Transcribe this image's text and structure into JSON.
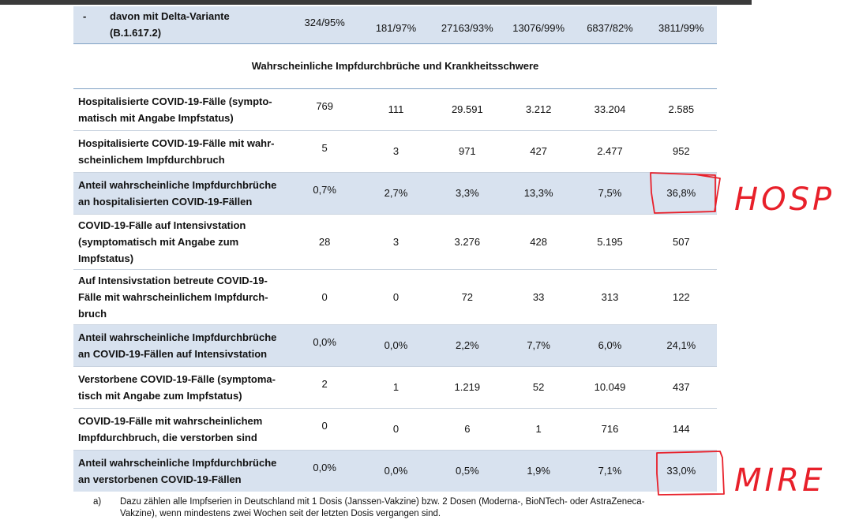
{
  "delta_row": {
    "dash": "-",
    "label_line1": "davon mit Delta-Variante",
    "label_line2": "(B.1.617.2)",
    "values": [
      "324/95%",
      "181/97%",
      "27163/93%",
      "13076/99%",
      "6837/82%",
      "3811/99%"
    ]
  },
  "section_title": "Wahrscheinliche Impfdurchbrüche und Krankheitsschwere",
  "rows": [
    {
      "lines": [
        "Hospitalisierte COVID-19-Fälle (sympto-",
        "matisch mit Angabe Impfstatus)"
      ],
      "values": [
        "769",
        "111",
        "29.591",
        "3.212",
        "33.204",
        "2.585"
      ],
      "shaded": false
    },
    {
      "lines": [
        "Hospitalisierte COVID-19-Fälle mit wahr-",
        "scheinlichem Impfdurchbruch"
      ],
      "values": [
        "5",
        "3",
        "971",
        "427",
        "2.477",
        "952"
      ],
      "shaded": false
    },
    {
      "lines": [
        "Anteil wahrscheinliche Impfdurchbrüche",
        "an hospitalisierten COVID-19-Fällen"
      ],
      "values": [
        "0,7%",
        "2,7%",
        "3,3%",
        "13,3%",
        "7,5%",
        "36,8%"
      ],
      "shaded": true
    },
    {
      "lines": [
        "COVID-19-Fälle auf Intensivstation",
        "(symptomatisch mit Angabe zum",
        "Impfstatus)"
      ],
      "values": [
        "28",
        "3",
        "3.276",
        "428",
        "5.195",
        "507"
      ],
      "shaded": false
    },
    {
      "lines": [
        "Auf Intensivstation betreute COVID-19-",
        "Fälle mit wahrscheinlichem Impfdurch-",
        "bruch"
      ],
      "values": [
        "0",
        "0",
        "72",
        "33",
        "313",
        "122"
      ],
      "shaded": false
    },
    {
      "lines": [
        "Anteil wahrscheinliche Impfdurchbrüche",
        "an COVID-19-Fällen auf Intensivstation"
      ],
      "values": [
        "0,0%",
        "0,0%",
        "2,2%",
        "7,7%",
        "6,0%",
        "24,1%"
      ],
      "shaded": true
    },
    {
      "lines": [
        "Verstorbene COVID-19-Fälle (symptoma-",
        "tisch mit Angabe zum Impfstatus)"
      ],
      "values": [
        "2",
        "1",
        "1.219",
        "52",
        "10.049",
        "437"
      ],
      "shaded": false
    },
    {
      "lines": [
        "COVID-19-Fälle mit wahrscheinlichem",
        "Impfdurchbruch, die verstorben sind"
      ],
      "values": [
        "0",
        "0",
        "6",
        "1",
        "716",
        "144"
      ],
      "shaded": false
    },
    {
      "lines": [
        "Anteil wahrscheinliche Impfdurchbrüche",
        "an verstorbenen COVID-19-Fällen"
      ],
      "values": [
        "0,0%",
        "0,0%",
        "0,5%",
        "1,9%",
        "7,1%",
        "33,0%"
      ],
      "shaded": true
    }
  ],
  "footnote": {
    "mark": "a)",
    "line1": "Dazu zählen alle Impfserien in Deutschland mit 1 Dosis (Janssen-Vakzine) bzw. 2 Dosen (Moderna-, BioNTech- oder AstraZeneca-",
    "line2": "Vakzine), wenn mindestens zwei Wochen seit der letzten Dosis vergangen sind."
  },
  "annotations": {
    "hosp_text": "HOSP",
    "mire_text": "MIRE",
    "ink_color": "#e8202a"
  }
}
